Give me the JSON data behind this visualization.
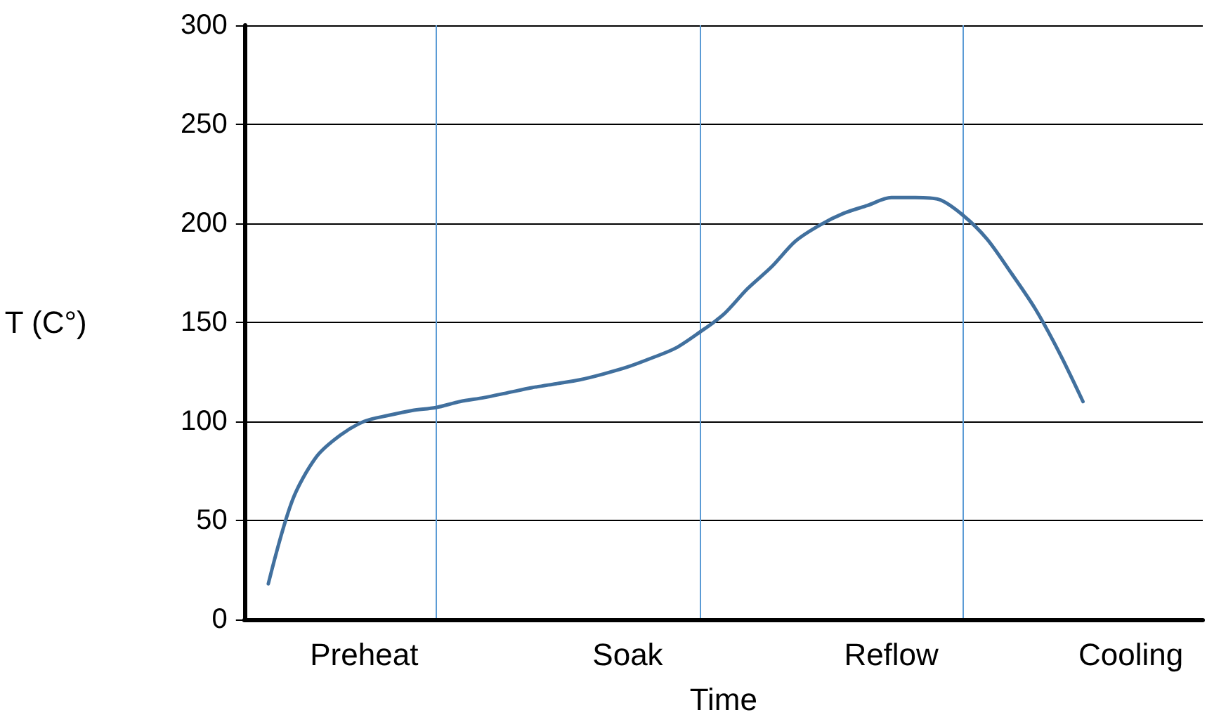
{
  "chart_data": {
    "type": "line",
    "xlabel": "Time",
    "ylabel": "T (C°)",
    "categories": [
      null,
      null,
      null,
      null,
      null,
      "Preheat",
      null,
      null,
      null,
      null,
      null,
      null,
      null,
      null,
      null,
      null,
      "Soak",
      null,
      null,
      null,
      null,
      null,
      null,
      null,
      null,
      null,
      null,
      "Reflow",
      null,
      null,
      null,
      null,
      null,
      null,
      null,
      null,
      null,
      "Cooling",
      null,
      null,
      null
    ],
    "series": [
      {
        "color": "#41709e",
        "values": [
          null,
          18,
          60,
          82,
          93,
          100,
          103,
          105.5,
          107,
          110,
          112,
          114.5,
          117,
          119,
          121,
          124,
          127.5,
          132,
          137,
          145,
          154,
          167,
          178,
          191,
          199,
          205,
          209,
          213,
          213,
          212,
          204,
          192,
          175,
          157,
          135,
          110,
          null,
          null,
          null,
          null,
          null
        ]
      }
    ],
    "ylim": [
      0,
      300
    ],
    "yticks": [
      0,
      50,
      100,
      150,
      200,
      250,
      300
    ],
    "grid": true,
    "marker": "none",
    "line_style": "solid"
  }
}
